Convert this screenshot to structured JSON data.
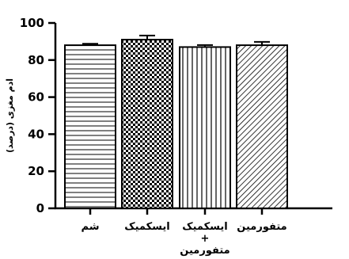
{
  "chart_data": {
    "type": "bar",
    "categories": [
      [
        "شم"
      ],
      [
        "ایسکمیک"
      ],
      [
        "ایسکمیک",
        "+",
        "متفورمین"
      ],
      [
        "متفورمین"
      ]
    ],
    "values": [
      88,
      91,
      87,
      88
    ],
    "errors": [
      0.8,
      2.2,
      1.1,
      1.8
    ],
    "ylabel": "ادم مغزی (درصد)",
    "ylim": [
      0,
      100
    ],
    "yticks": [
      0,
      20,
      40,
      60,
      80,
      100
    ],
    "grid": false,
    "bar_patterns": [
      "horizontal-lines",
      "checkerboard",
      "vertical-lines",
      "diagonal-lines"
    ],
    "colors": {
      "bar_stroke": "#000000",
      "pattern": "#000000",
      "background": "#ffffff"
    }
  }
}
